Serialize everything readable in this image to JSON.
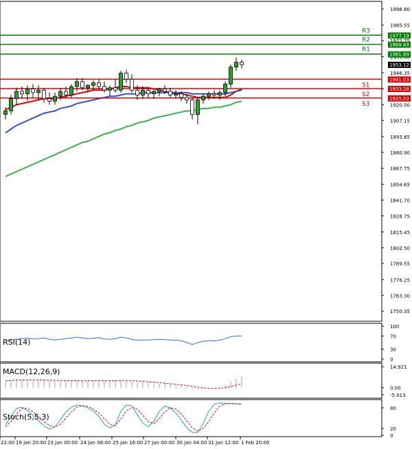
{
  "chart_data": {
    "type": "line",
    "main": {
      "ylim": [
        1742.0,
        2005.0
      ],
      "y_ticks": [
        "1998.80",
        "1985.55",
        "1972.75",
        "1959.50",
        "1946.35",
        "1933.20",
        "1920.00",
        "1907.15",
        "1893.85",
        "1880.90",
        "1867.75",
        "1854.65",
        "1841.70",
        "1828.75",
        "1815.45",
        "1802.50",
        "1789.55",
        "1776.25",
        "1763.30",
        "1750.35"
      ],
      "current_price": "1953.12",
      "levels": [
        {
          "name": "R3",
          "value": 1977.19,
          "label": "1977.19",
          "color": "#008000"
        },
        {
          "name": "R2",
          "value": 1969.69,
          "label": "1969.69",
          "color": "#008000"
        },
        {
          "name": "R1",
          "value": 1961.69,
          "label": "1961.69",
          "color": "#008000"
        },
        {
          "name": "S1",
          "value": 1941.03,
          "label": "1941.03",
          "color": "#e00000"
        },
        {
          "name": "S2",
          "value": 1933.28,
          "label": "1933.28",
          "color": "#e00000"
        },
        {
          "name": "S3",
          "value": 1925.53,
          "label": "1925.53",
          "color": "#e00000"
        }
      ],
      "candles": [
        [
          1912,
          1918,
          1908,
          1915
        ],
        [
          1915,
          1928,
          1912,
          1925
        ],
        [
          1925,
          1934,
          1920,
          1931
        ],
        [
          1931,
          1935,
          1925,
          1929
        ],
        [
          1929,
          1936,
          1923,
          1933
        ],
        [
          1933,
          1937,
          1926,
          1930
        ],
        [
          1930,
          1936,
          1924,
          1932
        ],
        [
          1932,
          1934,
          1922,
          1925
        ],
        [
          1925,
          1930,
          1920,
          1923
        ],
        [
          1923,
          1930,
          1920,
          1927
        ],
        [
          1927,
          1934,
          1924,
          1931
        ],
        [
          1931,
          1935,
          1925,
          1928
        ],
        [
          1928,
          1937,
          1926,
          1935
        ],
        [
          1935,
          1942,
          1931,
          1939
        ],
        [
          1939,
          1942,
          1932,
          1934
        ],
        [
          1934,
          1937,
          1930,
          1936
        ],
        [
          1936,
          1940,
          1932,
          1938
        ],
        [
          1938,
          1941,
          1933,
          1935
        ],
        [
          1935,
          1939,
          1930,
          1932
        ],
        [
          1932,
          1936,
          1927,
          1934
        ],
        [
          1934,
          1941,
          1930,
          1932
        ],
        [
          1932,
          1948,
          1930,
          1946
        ],
        [
          1946,
          1949,
          1938,
          1941
        ],
        [
          1941,
          1945,
          1930,
          1932
        ],
        [
          1932,
          1936,
          1924,
          1928
        ],
        [
          1928,
          1935,
          1925,
          1932
        ],
        [
          1932,
          1934,
          1926,
          1929
        ],
        [
          1929,
          1932,
          1925,
          1931
        ],
        [
          1931,
          1934,
          1927,
          1933
        ],
        [
          1933,
          1936,
          1929,
          1931
        ],
        [
          1931,
          1934,
          1926,
          1928
        ],
        [
          1928,
          1932,
          1925,
          1929
        ],
        [
          1929,
          1931,
          1923,
          1926
        ],
        [
          1926,
          1929,
          1921,
          1924
        ],
        [
          1924,
          1926,
          1908,
          1912
        ],
        [
          1912,
          1926,
          1904,
          1924
        ],
        [
          1924,
          1929,
          1921,
          1927
        ],
        [
          1927,
          1931,
          1924,
          1929
        ],
        [
          1929,
          1932,
          1925,
          1928
        ],
        [
          1928,
          1932,
          1924,
          1930
        ],
        [
          1930,
          1939,
          1927,
          1937
        ],
        [
          1937,
          1953,
          1934,
          1951
        ],
        [
          1951,
          1959,
          1948,
          1955
        ],
        [
          1955,
          1957,
          1950,
          1953
        ]
      ],
      "series": [
        {
          "color": "#e00000",
          "values": [
            1916,
            1918,
            1920,
            1921,
            1922,
            1923,
            1924,
            1925,
            1925,
            1925,
            1926,
            1927,
            1928,
            1929,
            1930,
            1931,
            1932,
            1932,
            1932,
            1933,
            1934,
            1935,
            1935,
            1934,
            1934,
            1934,
            1934,
            1933,
            1932,
            1931,
            1930,
            1929,
            1929,
            1928,
            1927,
            1926,
            1926,
            1926,
            1926,
            1926,
            1926,
            1928,
            1931,
            1933
          ]
        },
        {
          "color": "#3050c8",
          "values": [
            1897,
            1900,
            1903,
            1905,
            1907,
            1909,
            1911,
            1913,
            1914,
            1915,
            1917,
            1918,
            1919,
            1921,
            1922,
            1923,
            1924,
            1925,
            1926,
            1927,
            1927,
            1928,
            1929,
            1929,
            1929,
            1930,
            1930,
            1930,
            1930,
            1930,
            1930,
            1930,
            1930,
            1930,
            1929,
            1929,
            1929,
            1929,
            1929,
            1929,
            1929,
            1930,
            1931,
            1932
          ]
        },
        {
          "color": "#3cb04c",
          "values": [
            1861,
            1863,
            1865,
            1867,
            1869,
            1871,
            1873,
            1875,
            1877,
            1879,
            1881,
            1883,
            1885,
            1887,
            1889,
            1890,
            1892,
            1894,
            1896,
            1897,
            1899,
            1900,
            1902,
            1903,
            1905,
            1906,
            1907,
            1909,
            1910,
            1911,
            1912,
            1913,
            1914,
            1915,
            1915,
            1916,
            1917,
            1917,
            1918,
            1918,
            1919,
            1920,
            1922,
            1923
          ]
        }
      ]
    },
    "rsi": {
      "title": "RSI(14)",
      "ylim": [
        0,
        100
      ],
      "y_ticks": [
        "100",
        "70",
        "30",
        "0"
      ],
      "values": [
        56,
        58,
        60,
        62,
        63,
        61,
        62,
        64,
        60,
        58,
        60,
        62,
        64,
        66,
        64,
        62,
        63,
        65,
        61,
        60,
        62,
        66,
        64,
        60,
        57,
        58,
        58,
        59,
        60,
        59,
        58,
        57,
        56,
        50,
        44,
        50,
        54,
        56,
        55,
        57,
        62,
        68,
        70,
        70
      ]
    },
    "macd": {
      "title": "MACD(12,26,9)",
      "ylim": [
        -6.5,
        16.5
      ],
      "y_ticks": [
        "14.921",
        "0.00",
        "-5.013"
      ],
      "hist": [
        4,
        4.5,
        5,
        5,
        5,
        5,
        5,
        5,
        5,
        4.5,
        4.5,
        5,
        5,
        5,
        5,
        5,
        5,
        5,
        5,
        5,
        5,
        5,
        5,
        4.5,
        4,
        4,
        3.5,
        3.5,
        3,
        3,
        2.5,
        2,
        1.5,
        1,
        -1,
        -1,
        -0.5,
        -0.5,
        0,
        0.5,
        2,
        4.5,
        6.5,
        8
      ],
      "signal": [
        5,
        5,
        5.5,
        5.5,
        5.5,
        5.5,
        5.5,
        5.5,
        5.3,
        5.2,
        5.1,
        5,
        5,
        5,
        5,
        5,
        5,
        5,
        5,
        5,
        5,
        5.1,
        5.1,
        5,
        4.8,
        4.5,
        4.2,
        4,
        3.6,
        3.2,
        2.8,
        2.4,
        2,
        1.6,
        1,
        0.4,
        -0.2,
        -0.5,
        -0.6,
        -0.5,
        0,
        0.8,
        1.8,
        2.8
      ]
    },
    "stoch": {
      "title": "Stoch(5,5,3)",
      "ylim": [
        0,
        100
      ],
      "y_ticks": [
        "80",
        "20",
        "0"
      ],
      "k": [
        30,
        55,
        78,
        82,
        72,
        58,
        42,
        28,
        18,
        25,
        45,
        68,
        82,
        88,
        86,
        80,
        70,
        55,
        32,
        22,
        30,
        70,
        88,
        86,
        60,
        35,
        25,
        40,
        70,
        85,
        80,
        65,
        45,
        22,
        8,
        8,
        35,
        70,
        90,
        94,
        93,
        92,
        92,
        90
      ],
      "d": [
        25,
        40,
        62,
        78,
        78,
        68,
        55,
        40,
        28,
        24,
        32,
        50,
        68,
        82,
        86,
        84,
        76,
        65,
        48,
        32,
        28,
        48,
        70,
        82,
        76,
        58,
        40,
        34,
        48,
        68,
        80,
        76,
        62,
        42,
        22,
        12,
        20,
        40,
        65,
        85,
        92,
        93,
        92,
        91
      ]
    },
    "x_labels": [
      "22:00",
      "19 Jan 20:00",
      "23 Jan 00:00",
      "24 Jan 08:00",
      "25 Jan 16:00",
      "27 Jan 00:00",
      "30 Jan 04:00",
      "31 Jan 12:00",
      "1 Feb 20:00"
    ]
  }
}
